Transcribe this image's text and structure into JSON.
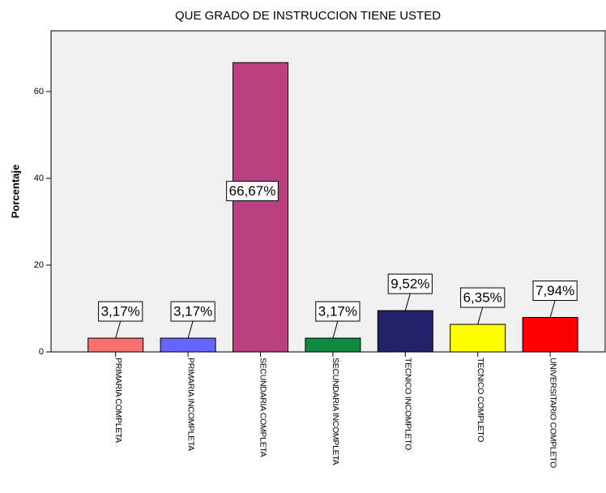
{
  "chart_data": {
    "type": "bar",
    "title": "QUE GRADO DE INSTRUCCION TIENE USTED",
    "ylabel": "Porcentaje",
    "categories": [
      "PRIMARIA COMPLETA",
      "PRIMARIA INCOMPLETA",
      "SECUNDARIA COMPLETA",
      "SECUNDARIA INCOMPLETA",
      "TECNICO INCOMPLETO",
      "TECNICO COMPLETO",
      "UNIVERSITARIO COMPLETO"
    ],
    "values": [
      3.17,
      3.17,
      66.67,
      3.17,
      9.52,
      6.35,
      7.94
    ],
    "value_labels": [
      "3,17%",
      "3,17%",
      "66,67%",
      "3,17%",
      "9,52%",
      "6,35%",
      "7,94%"
    ],
    "colors": [
      "#f87070",
      "#6666ff",
      "#bb4080",
      "#108a40",
      "#22226b",
      "#ffff00",
      "#ff0000"
    ],
    "ylim": [
      0,
      74
    ],
    "yticks": [
      0,
      20,
      40,
      60
    ]
  }
}
